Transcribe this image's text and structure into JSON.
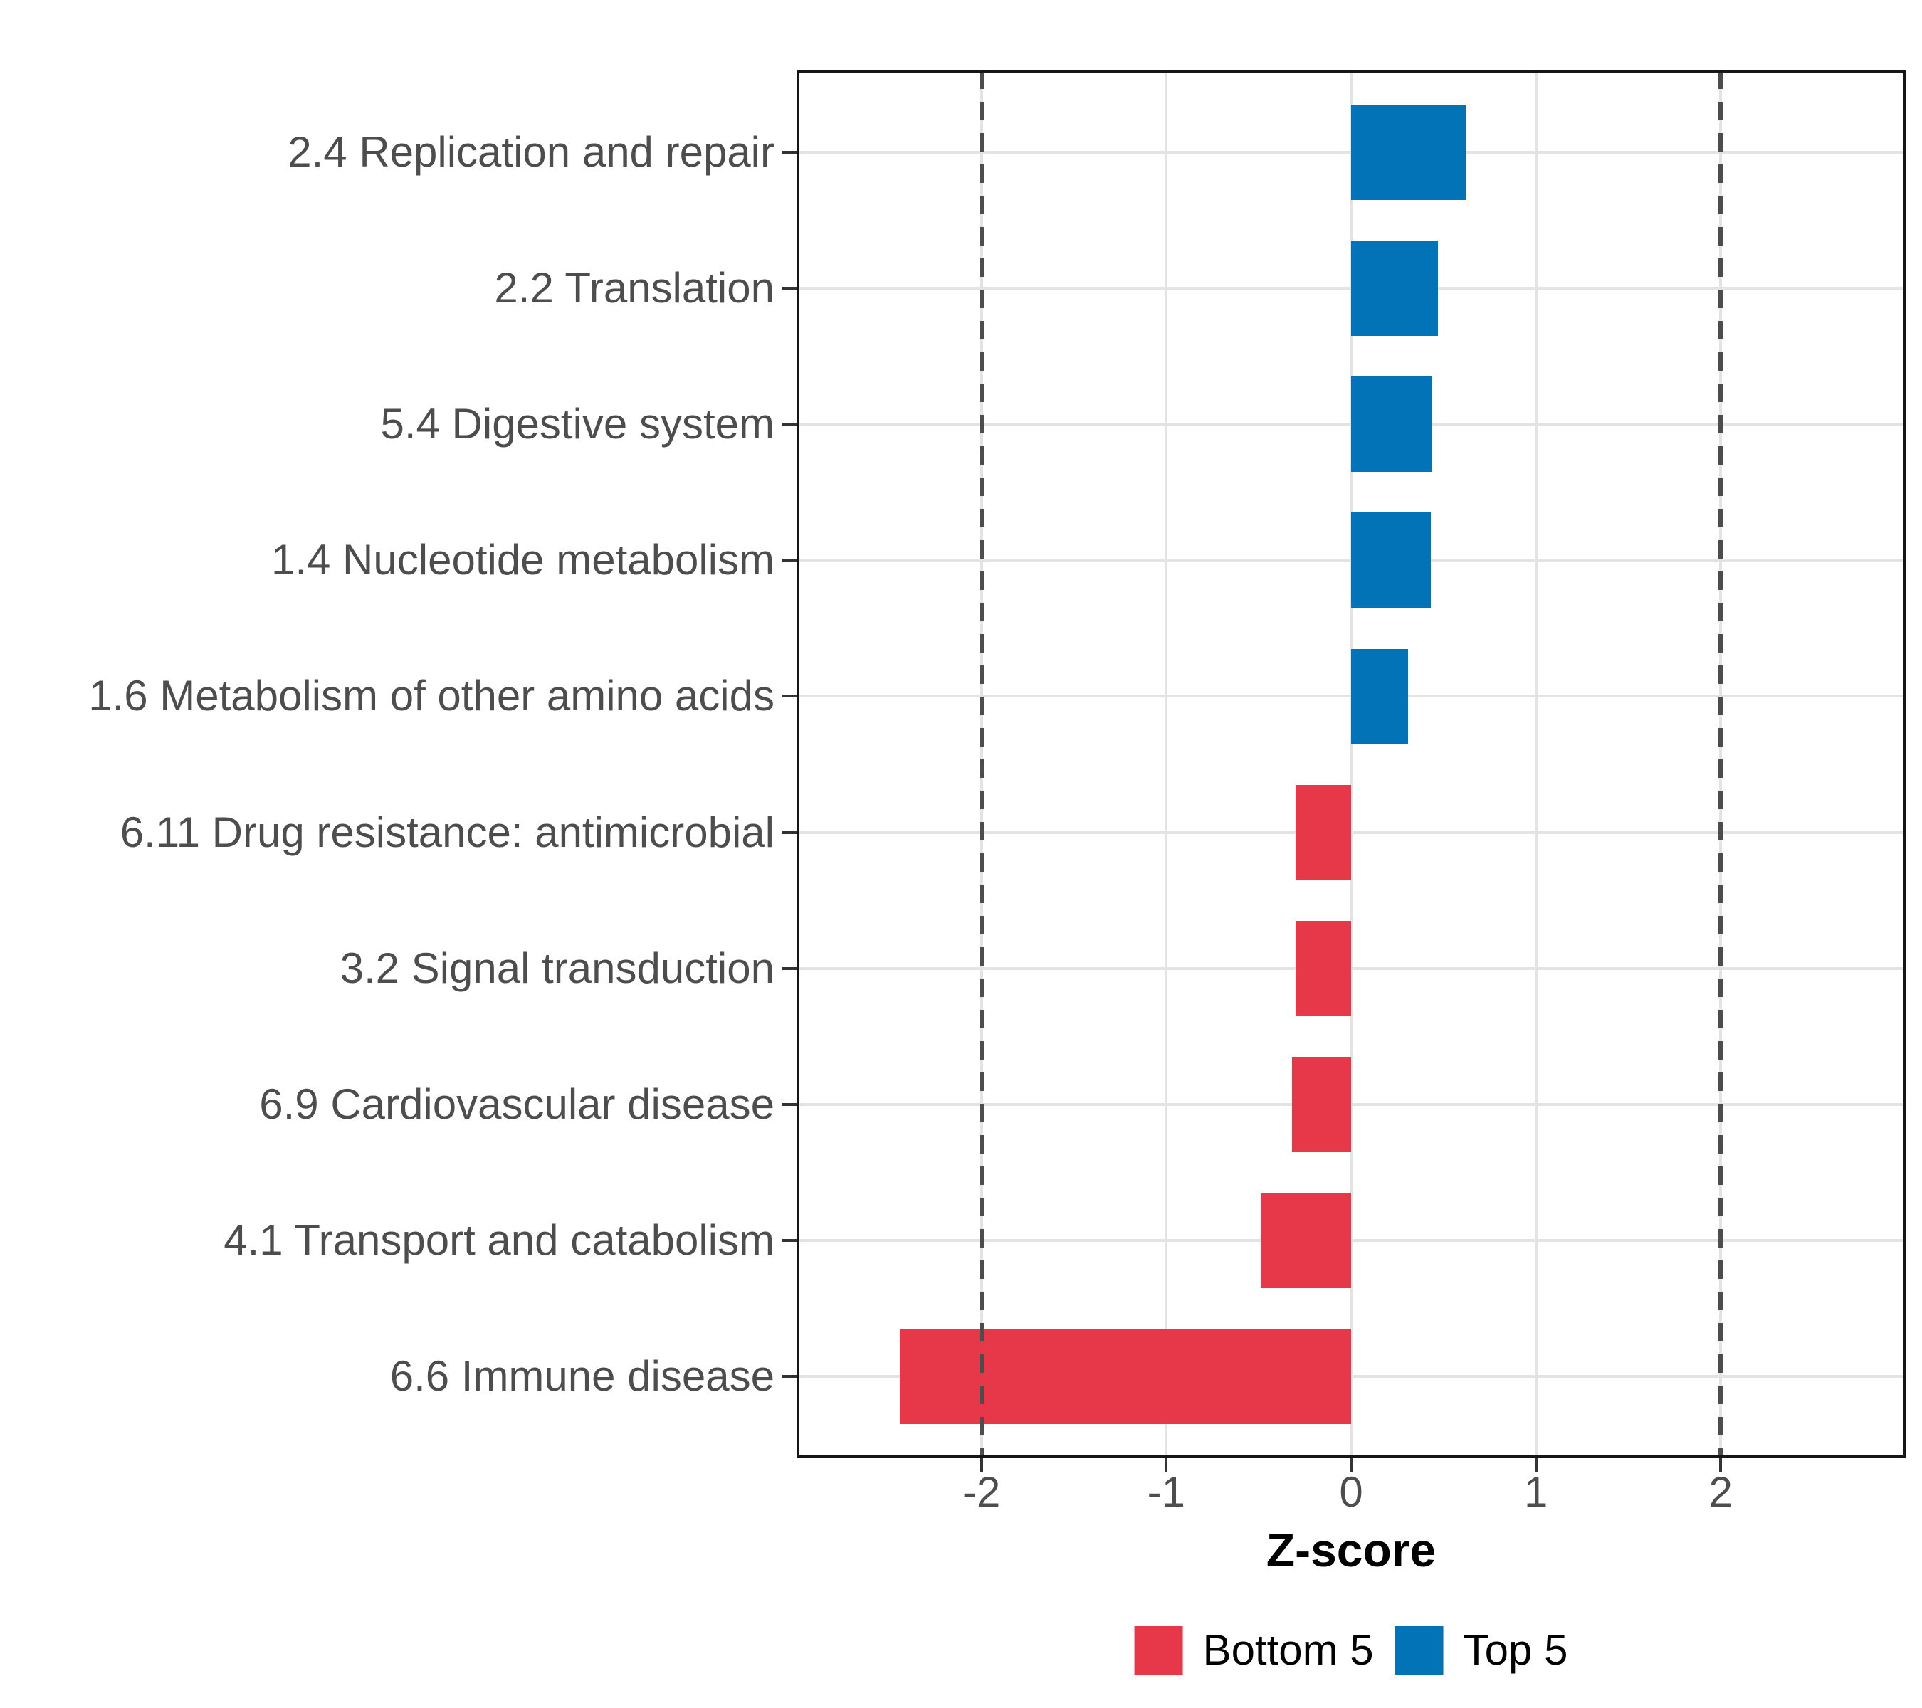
{
  "chart_data": {
    "type": "bar",
    "orientation": "horizontal",
    "title": "",
    "xlabel": "Z-score",
    "ylabel": "",
    "xlim": [
      -3,
      3
    ],
    "x_ticks": [
      -2,
      -1,
      0,
      1,
      2
    ],
    "x_tick_labels": [
      "-2",
      "-1",
      "0",
      "1",
      "2"
    ],
    "grid": "major-only",
    "reference_lines": {
      "x": [
        -2,
        2
      ],
      "style": "dashed",
      "color": "#4d4d4d"
    },
    "categories": [
      "2.4 Replication and repair",
      "2.2 Translation",
      "5.4 Digestive system",
      "1.4 Nucleotide metabolism",
      "1.6 Metabolism of other amino acids",
      "6.11 Drug resistance: antimicrobial",
      "3.2 Signal transduction",
      "6.9 Cardiovascular disease",
      "4.1 Transport and catabolism",
      "6.6 Immune disease"
    ],
    "bars": [
      {
        "category": "2.4 Replication and repair",
        "value": 0.62,
        "group": "Top 5"
      },
      {
        "category": "2.2 Translation",
        "value": 0.47,
        "group": "Top 5"
      },
      {
        "category": "5.4 Digestive system",
        "value": 0.44,
        "group": "Top 5"
      },
      {
        "category": "1.4 Nucleotide metabolism",
        "value": 0.43,
        "group": "Top 5"
      },
      {
        "category": "1.6 Metabolism of other amino acids",
        "value": 0.31,
        "group": "Top 5"
      },
      {
        "category": "6.11 Drug resistance: antimicrobial",
        "value": -0.3,
        "group": "Bottom 5"
      },
      {
        "category": "3.2 Signal transduction",
        "value": -0.3,
        "group": "Bottom 5"
      },
      {
        "category": "6.9 Cardiovascular disease",
        "value": -0.32,
        "group": "Bottom 5"
      },
      {
        "category": "4.1 Transport and catabolism",
        "value": -0.49,
        "group": "Bottom 5"
      },
      {
        "category": "6.6 Immune disease",
        "value": -2.44,
        "group": "Bottom 5"
      }
    ],
    "group_colors": {
      "Bottom 5": "#e7384a",
      "Top 5": "#0273b6"
    },
    "legend": [
      {
        "label": "Bottom 5",
        "color": "#e7384a"
      },
      {
        "label": "Top 5",
        "color": "#0273b6"
      }
    ],
    "legend_position": "bottom-center"
  }
}
